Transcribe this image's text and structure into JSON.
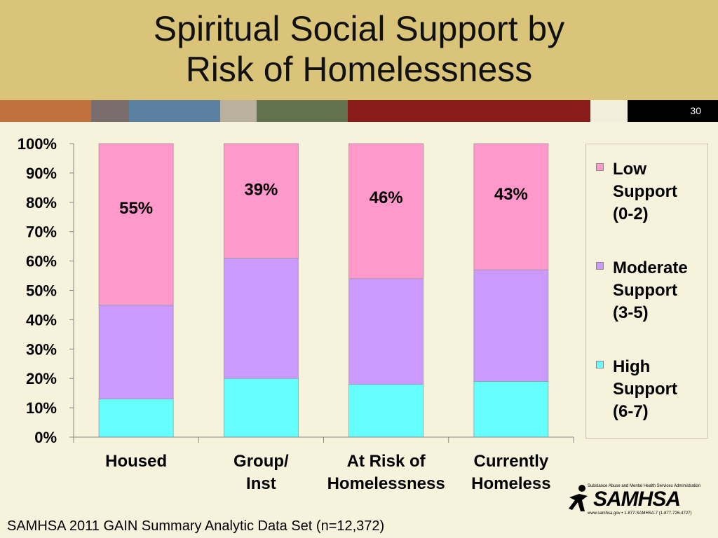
{
  "title_lines": [
    "Spiritual Social Support by",
    "Risk of Homelessness"
  ],
  "slide_number": "30",
  "stripe_colors": [
    "#c0713e",
    "#7a6d6d",
    "#5b7fa0",
    "#b9b09e",
    "#63724e",
    "#8b1a1a",
    "#f3eedb",
    "#000000"
  ],
  "chart_data": {
    "type": "bar",
    "stacked": true,
    "categories": [
      [
        "Housed"
      ],
      [
        "Group/",
        "Inst"
      ],
      [
        "At Risk of",
        "Homelessness"
      ],
      [
        "Currently",
        "Homeless"
      ]
    ],
    "series": [
      {
        "name": "High Support (6-7)",
        "legend_lines": [
          "High",
          "Support",
          "(6-7)"
        ],
        "color": "#66ffff",
        "values": [
          13,
          20,
          18,
          19
        ]
      },
      {
        "name": "Moderate Support (3-5)",
        "legend_lines": [
          "Moderate",
          "Support",
          "(3-5)"
        ],
        "color": "#cc99ff",
        "values": [
          32,
          41,
          36,
          38
        ]
      },
      {
        "name": "Low Support (0-2)",
        "legend_lines": [
          "Low",
          "Support",
          "(0-2)"
        ],
        "color": "#ff99cc",
        "values": [
          55,
          39,
          46,
          43
        ]
      }
    ],
    "data_labels": [
      "55%",
      "39%",
      "46%",
      "43%"
    ],
    "yticks": [
      "0%",
      "10%",
      "20%",
      "30%",
      "40%",
      "50%",
      "60%",
      "70%",
      "80%",
      "90%",
      "100%"
    ],
    "ylim": [
      0,
      100
    ],
    "legend_position": "right"
  },
  "source_text": "SAMHSA 2011 GAIN Summary Analytic Data Set (n=12,372)",
  "logo": {
    "name": "SAMHSA",
    "tagline": "Substance Abuse and Mental Health Services Administration",
    "sub": "www.samhsa.gov • 1-877-SAMHSA-7 (1-877-726-4727)"
  }
}
